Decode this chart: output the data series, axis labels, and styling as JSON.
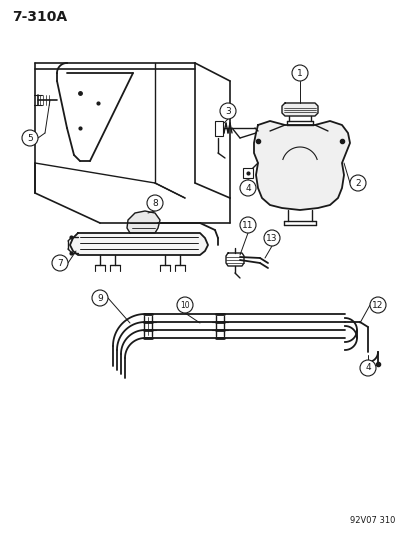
{
  "title": "7-310A",
  "footer": "92V07 310",
  "bg_color": "#ffffff",
  "line_color": "#1a1a1a",
  "figsize": [
    4.14,
    5.33
  ],
  "dpi": 100
}
